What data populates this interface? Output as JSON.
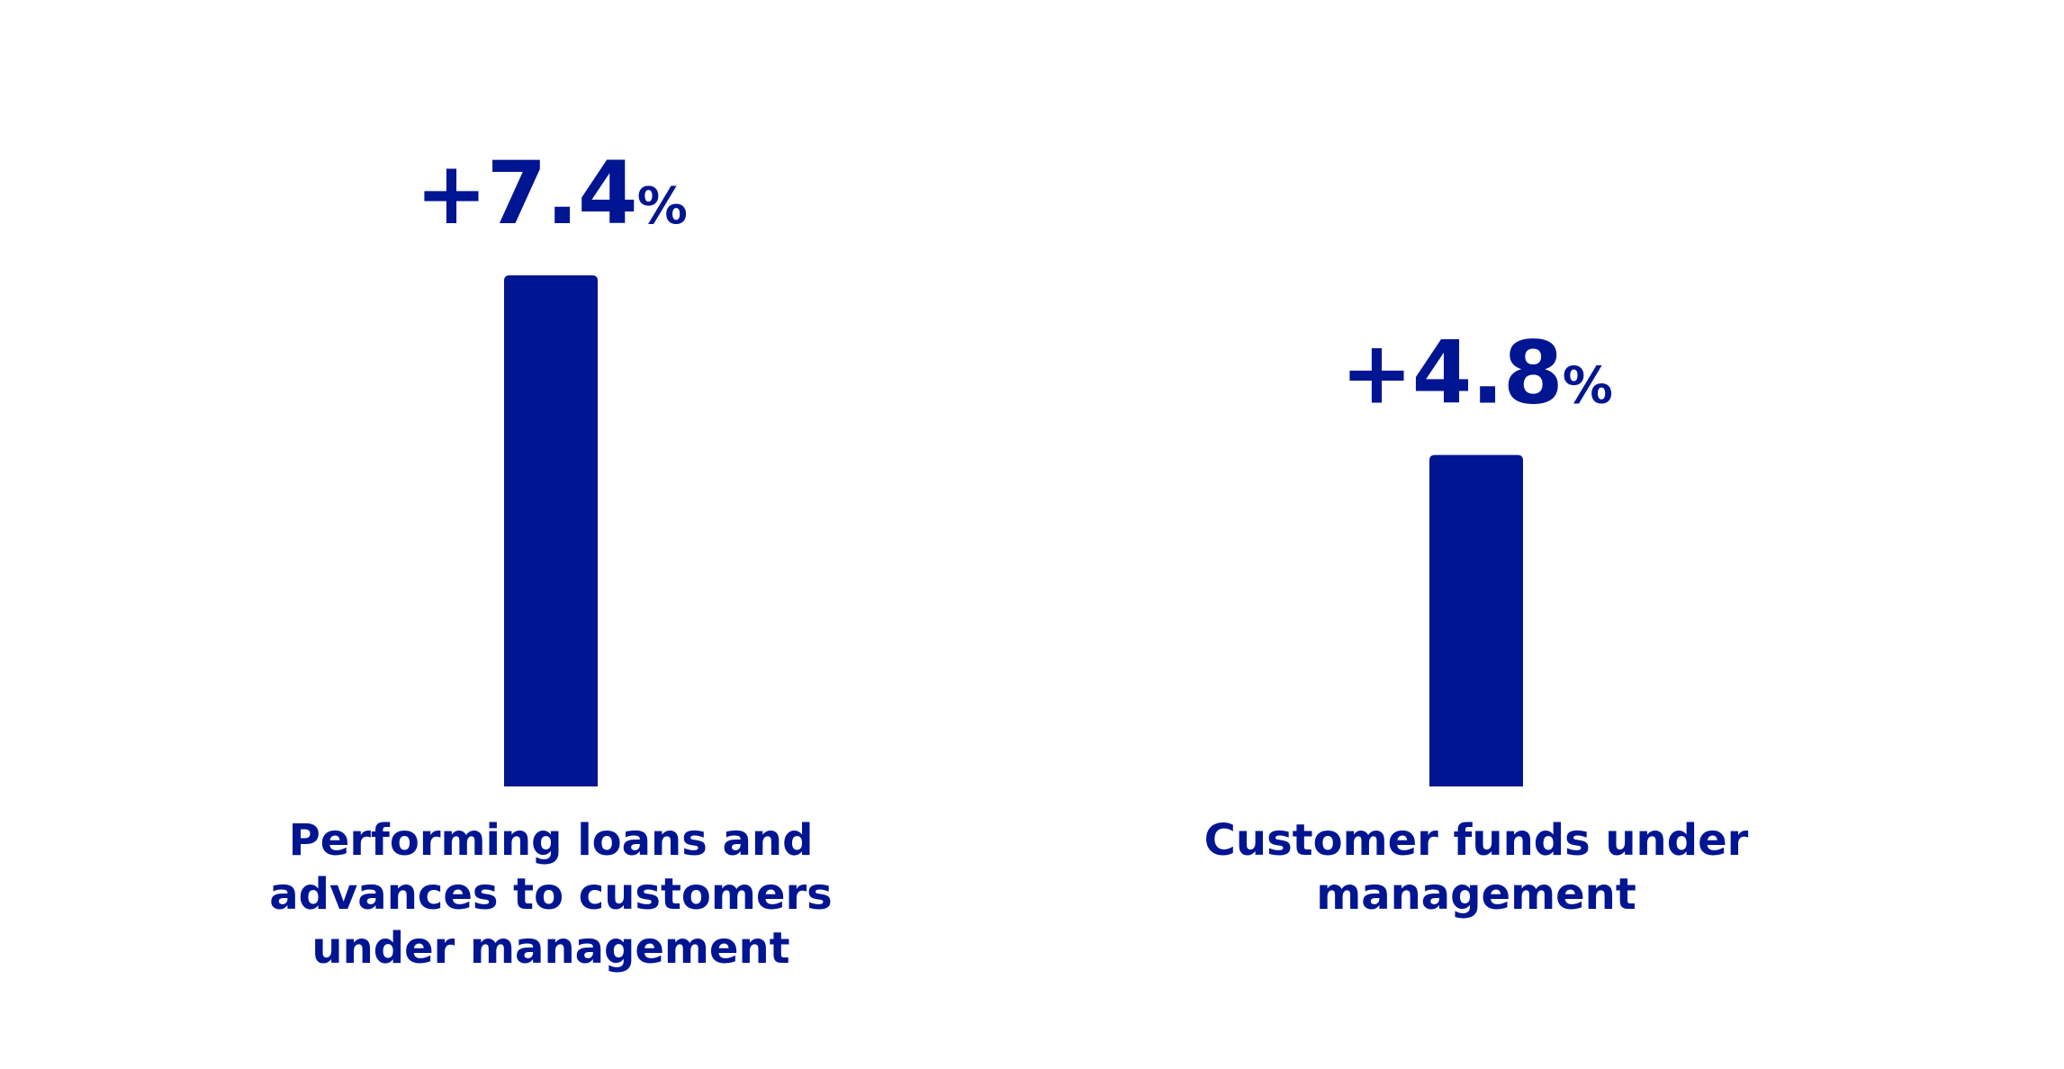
{
  "chart_data": {
    "type": "bar",
    "categories": [
      "Performing loans and advances to customers under management",
      "Customer funds under management"
    ],
    "category_lines": [
      [
        "Performing loans and",
        "advances to customers",
        "under management"
      ],
      [
        "Customer funds under",
        "management"
      ]
    ],
    "values": [
      7.4,
      4.8
    ],
    "value_labels": [
      "+7.4",
      "+4.8"
    ],
    "unit": "%",
    "ylim": [
      0,
      7.4
    ],
    "grid": false,
    "bar_color": "#001591",
    "text_color": "#001591"
  }
}
